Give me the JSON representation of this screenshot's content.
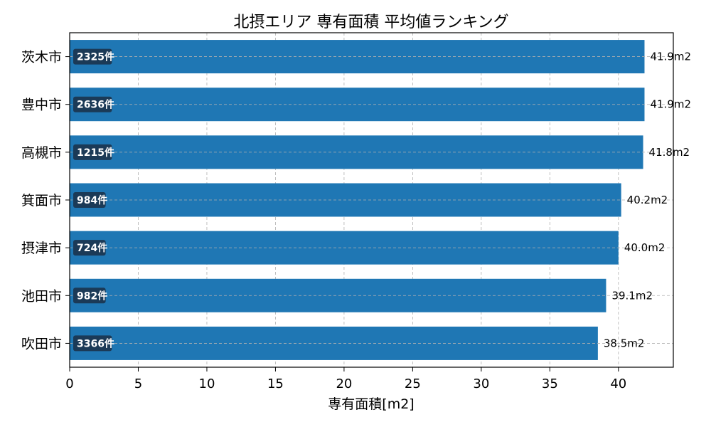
{
  "chart_data": {
    "type": "bar",
    "orientation": "horizontal",
    "title": "北摂エリア 専有面積 平均値ランキング",
    "xlabel": "専有面積[m2]",
    "ylabel": "",
    "xlim": [
      0,
      44
    ],
    "xticks": [
      0,
      5,
      10,
      15,
      20,
      25,
      30,
      35,
      40
    ],
    "grid": true,
    "value_suffix": "m2",
    "count_suffix": "件",
    "categories": [
      "茨木市",
      "豊中市",
      "高槻市",
      "箕面市",
      "摂津市",
      "池田市",
      "吹田市"
    ],
    "values": [
      41.9,
      41.9,
      41.8,
      40.2,
      40.0,
      39.1,
      38.5
    ],
    "counts": [
      2325,
      2636,
      1215,
      984,
      724,
      982,
      3366
    ],
    "value_labels": [
      "41.9m2",
      "41.9m2",
      "41.8m2",
      "40.2m2",
      "40.0m2",
      "39.1m2",
      "38.5m2"
    ],
    "count_labels": [
      "2325件",
      "2636件",
      "1215件",
      "984件",
      "724件",
      "982件",
      "3366件"
    ],
    "bar_color": "#1f77b4",
    "count_badge_color": "#1b3a57",
    "grid_color": "#b0b0b0"
  }
}
